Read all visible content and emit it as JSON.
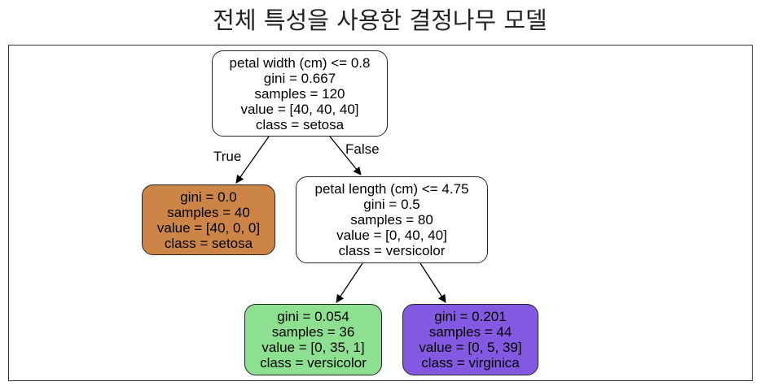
{
  "title": "전체 특성을 사용한 결정나무 모델",
  "nodes": [
    {
      "id": "root",
      "lines": [
        "petal width (cm) <= 0.8",
        "gini = 0.667",
        "samples = 120",
        "value = [40, 40, 40]",
        "class = setosa"
      ],
      "fill": "#ffffff"
    },
    {
      "id": "setosa-leaf",
      "lines": [
        "gini = 0.0",
        "samples = 40",
        "value = [40, 0, 0]",
        "class = setosa"
      ],
      "fill": "#cd8547"
    },
    {
      "id": "petal-length-split",
      "lines": [
        "petal length (cm) <= 4.75",
        "gini = 0.5",
        "samples = 80",
        "value = [0, 40, 40]",
        "class = versicolor"
      ],
      "fill": "#ffffff"
    },
    {
      "id": "versicolor-leaf",
      "lines": [
        "gini = 0.054",
        "samples = 36",
        "value = [0, 35, 1]",
        "class = versicolor"
      ],
      "fill": "#8ce08f"
    },
    {
      "id": "virginica-leaf",
      "lines": [
        "gini = 0.201",
        "samples = 44",
        "value = [0, 5, 39]",
        "class = virginica"
      ],
      "fill": "#8459e2"
    }
  ],
  "edges": [
    {
      "from": "root",
      "to": "setosa-leaf",
      "label": "True"
    },
    {
      "from": "root",
      "to": "petal-length-split",
      "label": "False"
    },
    {
      "from": "petal-length-split",
      "to": "versicolor-leaf",
      "label": ""
    },
    {
      "from": "petal-length-split",
      "to": "virginica-leaf",
      "label": ""
    }
  ]
}
